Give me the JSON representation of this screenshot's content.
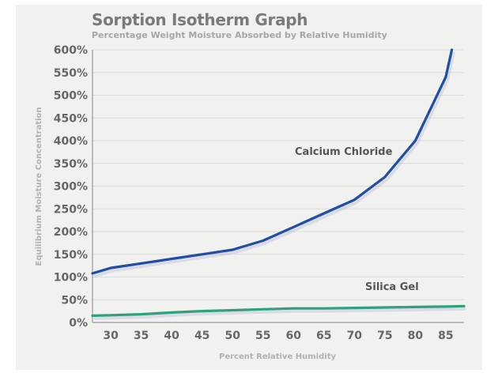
{
  "chart_data": {
    "type": "line",
    "title": "Sorption Isotherm Graph",
    "subtitle": "Percentage Weight Moisture Absorbed by Relative Humidity",
    "xlabel": "Percent Relative Humidity",
    "ylabel": "Equilibrium Moisture Concentration",
    "xlim": [
      27,
      88
    ],
    "ylim": [
      0,
      600
    ],
    "x_ticks": [
      30,
      35,
      40,
      45,
      50,
      55,
      60,
      65,
      70,
      75,
      80,
      85
    ],
    "y_ticks": [
      0,
      50,
      100,
      150,
      200,
      250,
      300,
      350,
      400,
      450,
      500,
      550,
      600
    ],
    "y_tick_labels": [
      "0%",
      "50%",
      "100%",
      "150%",
      "200%",
      "250%",
      "300%",
      "350%",
      "400%",
      "450%",
      "500%",
      "550%",
      "600%"
    ],
    "grid": true,
    "series": [
      {
        "name": "Calcium Chloride",
        "color": "#1f4fa3",
        "x": [
          27,
          30,
          35,
          40,
          45,
          50,
          55,
          60,
          65,
          70,
          75,
          80,
          85,
          86
        ],
        "y": [
          108,
          120,
          130,
          140,
          150,
          160,
          180,
          210,
          240,
          270,
          320,
          400,
          540,
          600
        ]
      },
      {
        "name": "Silica Gel",
        "color": "#2fa27c",
        "x": [
          27,
          30,
          35,
          40,
          45,
          50,
          55,
          60,
          65,
          70,
          75,
          80,
          85,
          88
        ],
        "y": [
          15,
          16,
          18,
          22,
          25,
          27,
          29,
          31,
          31,
          32,
          33,
          34,
          35,
          36
        ]
      }
    ],
    "annotations": [
      {
        "text": "Calcium Chloride",
        "series": "Calcium Chloride"
      },
      {
        "text": "Silica Gel",
        "series": "Silica Gel"
      }
    ]
  }
}
